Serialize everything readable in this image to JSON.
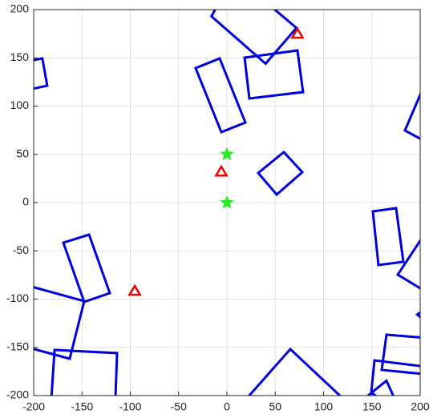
{
  "chart_data": {
    "type": "line",
    "xlim": [
      -200,
      200
    ],
    "ylim": [
      -200,
      200
    ],
    "xticks": [
      -200,
      -150,
      -100,
      -50,
      0,
      50,
      100,
      150,
      200
    ],
    "yticks": [
      -200,
      -150,
      -100,
      -50,
      0,
      50,
      100,
      150,
      200
    ],
    "grid": true,
    "series": [
      {
        "color": "#0000dd",
        "closed": false,
        "x": [
          -9,
          -16,
          40,
          72,
          46
        ],
        "y": [
          206,
          193,
          144,
          181,
          203
        ]
      },
      {
        "color": "#0000dd",
        "closed": true,
        "x": [
          18.3,
          73,
          78.8,
          23.2
        ],
        "y": [
          150.2,
          157.7,
          114.5,
          107.9
        ]
      },
      {
        "color": "#0000dd",
        "closed": true,
        "x": [
          -32.4,
          -7.5,
          19.1,
          -5.8
        ],
        "y": [
          139.4,
          149.4,
          83,
          73
        ]
      },
      {
        "color": "#0000dd",
        "closed": false,
        "x": [
          -210,
          -191,
          -186,
          -210
        ],
        "y": [
          146,
          149.4,
          121.2,
          116
        ]
      },
      {
        "color": "#0000dd",
        "closed": true,
        "x": [
          32.4,
          58.9,
          78,
          51.5
        ],
        "y": [
          30.7,
          52.3,
          31.5,
          8.3
        ]
      },
      {
        "color": "#0000dd",
        "closed": false,
        "x": [
          203,
          184.2,
          203
        ],
        "y": [
          118.7,
          74.7,
          64.7
        ]
      },
      {
        "color": "#0000dd",
        "closed": true,
        "x": [
          151,
          175.1,
          182.6,
          156.8
        ],
        "y": [
          -9.1,
          -5.8,
          -61.4,
          -64.7
        ]
      },
      {
        "color": "#0000dd",
        "closed": false,
        "x": [
          203,
          176.8,
          200,
          210
        ],
        "y": [
          -34.9,
          -74.7,
          -88.8,
          -85
        ]
      },
      {
        "color": "#0000dd",
        "closed": false,
        "x": [
          203,
          197,
          203
        ],
        "y": [
          -112,
          -116,
          -121
        ]
      },
      {
        "color": "#0000dd",
        "closed": true,
        "x": [
          -169.3,
          -142.7,
          -121.2,
          -147.7
        ],
        "y": [
          -41.5,
          -33.2,
          -93.8,
          -102.9
        ]
      },
      {
        "color": "#0000dd",
        "closed": false,
        "x": [
          -210,
          -147.7,
          -162.7,
          -210
        ],
        "y": [
          -85,
          -102.1,
          -161.8,
          -149
        ]
      },
      {
        "color": "#0000dd",
        "closed": true,
        "x": [
          -178.4,
          -113.7,
          -115.4,
          -181.7
        ],
        "y": [
          -152.7,
          -156,
          -203,
          -203
        ]
      },
      {
        "color": "#0000dd",
        "closed": false,
        "x": [
          21.6,
          65.6,
          118.7
        ],
        "y": [
          -201.7,
          -151.9,
          -201.7
        ]
      },
      {
        "color": "#0000dd",
        "closed": false,
        "x": [
          203,
          165.1,
          160.2,
          203
        ],
        "y": [
          -140,
          -136.9,
          -173.4,
          -177.6
        ]
      },
      {
        "color": "#0000dd",
        "closed": false,
        "x": [
          205,
          152.7,
          149.4,
          160
        ],
        "y": [
          -170,
          -163.5,
          -196.7,
          -205
        ]
      },
      {
        "color": "#0000dd",
        "closed": false,
        "x": [
          146,
          165.1,
          174.3
        ],
        "y": [
          -200,
          -184.6,
          -205
        ]
      },
      {
        "color": "#22ee22",
        "marker": "star",
        "x": [
          0,
          0
        ],
        "y": [
          0,
          50
        ]
      },
      {
        "color": "#ee0000",
        "marker": "triangle",
        "x": [
          -95.4,
          -5.8,
          73
        ],
        "y": [
          -92.1,
          31.5,
          174.3
        ]
      }
    ]
  }
}
